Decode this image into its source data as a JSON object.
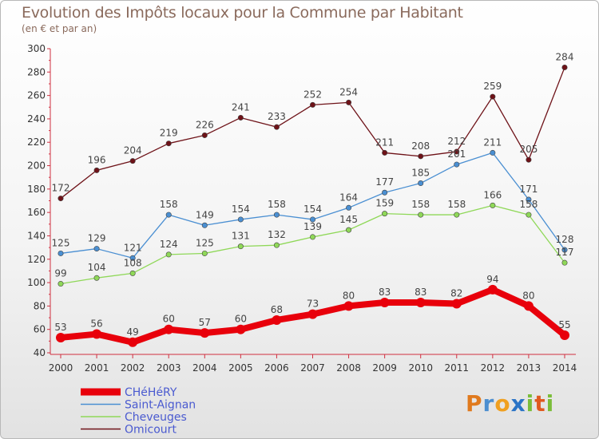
{
  "title": "Evolution des Impôts locaux pour la Commune par Habitant",
  "subtitle": "(en € et par an)",
  "logo": "Proxiti",
  "chart_data": {
    "type": "line",
    "title": "Evolution des Impôts locaux pour la Commune par Habitant",
    "subtitle": "(en € et par an)",
    "x": [
      "2000",
      "2001",
      "2002",
      "2003",
      "2004",
      "2005",
      "2006",
      "2007",
      "2008",
      "2009",
      "2010",
      "2011",
      "2012",
      "2013",
      "2014"
    ],
    "ylim": [
      40,
      300
    ],
    "yticks": [
      40,
      60,
      80,
      100,
      120,
      140,
      160,
      180,
      200,
      220,
      240,
      260,
      280,
      300
    ],
    "grid": false,
    "legend_position": "bottom-left",
    "series": [
      {
        "name": "CHéHéRY",
        "color": "#e8000b",
        "values": [
          53,
          56,
          49,
          60,
          57,
          60,
          68,
          73,
          80,
          83,
          83,
          82,
          94,
          80,
          55
        ]
      },
      {
        "name": "Saint-Aignan",
        "color": "#4a8fd2",
        "values": [
          125,
          129,
          121,
          158,
          149,
          154,
          158,
          154,
          164,
          177,
          185,
          201,
          211,
          171,
          128
        ]
      },
      {
        "name": "Cheveuges",
        "color": "#8fd858",
        "values": [
          99,
          104,
          108,
          124,
          125,
          131,
          132,
          139,
          145,
          159,
          158,
          158,
          166,
          158,
          117
        ]
      },
      {
        "name": "Omicourt",
        "color": "#6e1218",
        "values": [
          172,
          196,
          204,
          219,
          226,
          241,
          233,
          252,
          254,
          211,
          208,
          212,
          259,
          205,
          284
        ]
      }
    ]
  }
}
